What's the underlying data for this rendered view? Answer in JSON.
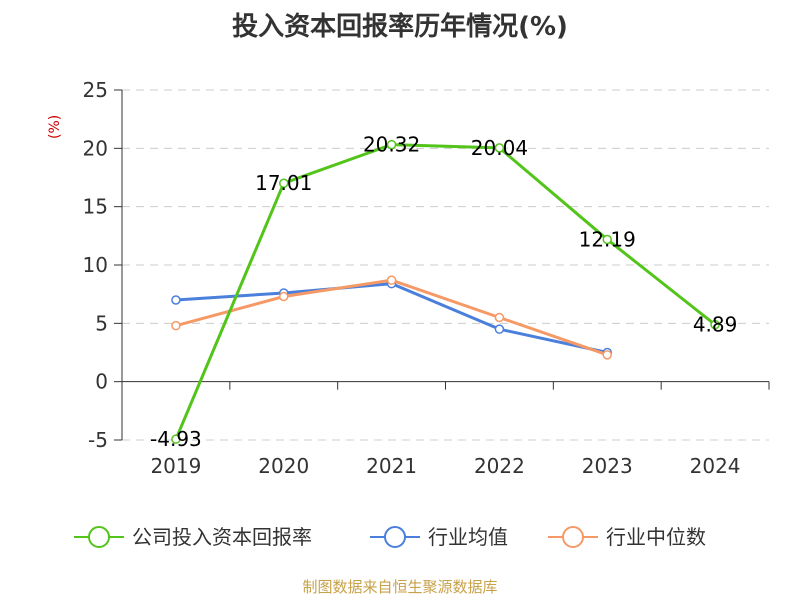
{
  "title": "投入资本回报率历年情况(%)",
  "y_unit": "(%)",
  "source": "制图数据来自恒生聚源数据库",
  "chart_data": {
    "type": "line",
    "title": "投入资本回报率历年情况(%)",
    "ylabel": "(%)",
    "xlabel": "",
    "categories": [
      "2019",
      "2020",
      "2021",
      "2022",
      "2023",
      "2024"
    ],
    "ylim": [
      -5,
      25
    ],
    "yticks": [
      -5,
      0,
      5,
      10,
      15,
      20,
      25
    ],
    "grid": true,
    "legend_position": "bottom",
    "series": [
      {
        "name": "公司投入资本回报率",
        "color": "#52c41a",
        "values": [
          -4.93,
          17.01,
          20.32,
          20.04,
          12.19,
          4.89
        ],
        "data_labels": [
          "-4.93",
          "17.01",
          "20.32",
          "20.04",
          "12.19",
          "4.89"
        ]
      },
      {
        "name": "行业均值",
        "color": "#4a7fdc",
        "values": [
          7.0,
          7.6,
          8.4,
          4.5,
          2.5,
          null
        ]
      },
      {
        "name": "行业中位数",
        "color": "#f59a67",
        "values": [
          4.8,
          7.3,
          8.7,
          5.5,
          2.3,
          null
        ]
      }
    ]
  }
}
